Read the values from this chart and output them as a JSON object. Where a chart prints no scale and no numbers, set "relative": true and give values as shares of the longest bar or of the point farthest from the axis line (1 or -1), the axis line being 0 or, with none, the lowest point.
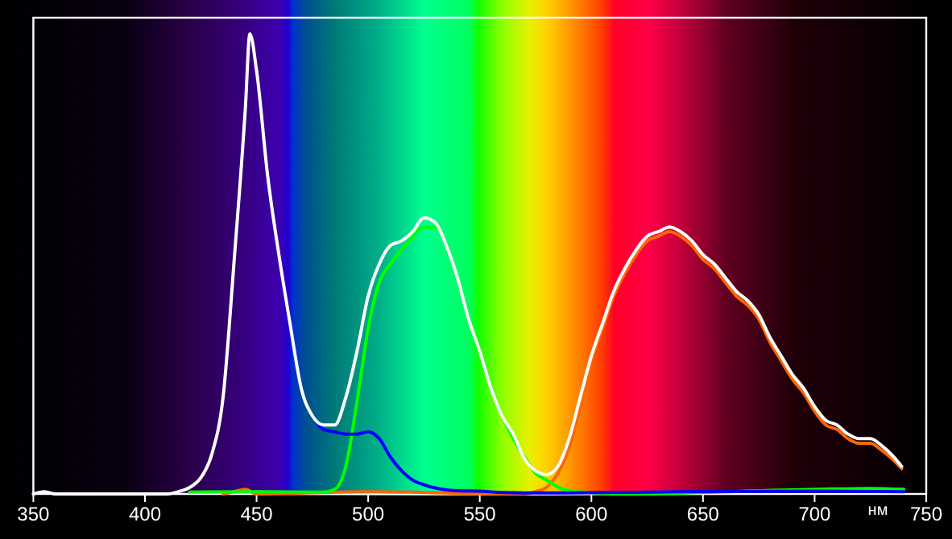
{
  "chart_data": {
    "type": "line",
    "xlabel": "нм",
    "relative": true,
    "xlim": [
      350,
      750
    ],
    "xticks": [
      350,
      400,
      450,
      500,
      550,
      600,
      650,
      700,
      750
    ],
    "grid": false,
    "marker": "none",
    "line_style": "solid",
    "series": [
      {
        "color": "#ff6600",
        "x": [
          435,
          440,
          445,
          450,
          500,
          560,
          570,
          575,
          580,
          585,
          590,
          595,
          600,
          605,
          610,
          615,
          620,
          625,
          630,
          635,
          640,
          645,
          650,
          655,
          660,
          665,
          670,
          675,
          680,
          685,
          690,
          695,
          700,
          705,
          710,
          715,
          720,
          725,
          730,
          735,
          739
        ],
        "values": [
          0,
          0.005,
          0.01,
          0,
          0.005,
          0,
          0,
          0.005,
          0.015,
          0.045,
          0.1,
          0.19,
          0.29,
          0.36,
          0.43,
          0.48,
          0.52,
          0.55,
          0.56,
          0.57,
          0.56,
          0.54,
          0.51,
          0.49,
          0.46,
          0.43,
          0.41,
          0.38,
          0.33,
          0.29,
          0.25,
          0.22,
          0.18,
          0.15,
          0.14,
          0.12,
          0.11,
          0.11,
          0.095,
          0.075,
          0.055
        ]
      },
      {
        "color": "#00ff00",
        "x": [
          420,
          450,
          480,
          485,
          490,
          495,
          500,
          505,
          510,
          515,
          520,
          525,
          530,
          535,
          540,
          545,
          550,
          555,
          560,
          565,
          570,
          575,
          580,
          585,
          590,
          600,
          610,
          700,
          725,
          740
        ],
        "values": [
          0.004,
          0.005,
          0.004,
          0.01,
          0.06,
          0.2,
          0.36,
          0.46,
          0.5,
          0.53,
          0.56,
          0.58,
          0.58,
          0.54,
          0.47,
          0.38,
          0.31,
          0.23,
          0.17,
          0.12,
          0.08,
          0.045,
          0.03,
          0.015,
          0.007,
          0.003,
          0,
          0.01,
          0.012,
          0.01
        ]
      },
      {
        "color": "#0000ff",
        "x": [
          475,
          480,
          485,
          490,
          495,
          500,
          505,
          510,
          515,
          520,
          525,
          530,
          540,
          550,
          560,
          580,
          640,
          700,
          740
        ],
        "values": [
          0.17,
          0.14,
          0.135,
          0.13,
          0.13,
          0.135,
          0.12,
          0.08,
          0.05,
          0.03,
          0.02,
          0.013,
          0.007,
          0.006,
          0.003,
          0.002,
          0.005,
          0.006,
          0.005
        ]
      },
      {
        "color": "#ffffff",
        "x": [
          350,
          355,
          360,
          410,
          415,
          420,
          425,
          430,
          435,
          440,
          445,
          447,
          450,
          455,
          460,
          465,
          470,
          475,
          480,
          485,
          490,
          495,
          500,
          505,
          510,
          515,
          520,
          525,
          530,
          535,
          540,
          545,
          550,
          555,
          560,
          565,
          570,
          575,
          580,
          585,
          590,
          595,
          600,
          605,
          610,
          615,
          620,
          625,
          630,
          635,
          640,
          645,
          650,
          655,
          660,
          665,
          670,
          675,
          680,
          685,
          690,
          695,
          700,
          705,
          710,
          715,
          720,
          725,
          730,
          735,
          739
        ],
        "values": [
          0,
          0.005,
          0,
          0,
          0.005,
          0.014,
          0.035,
          0.087,
          0.21,
          0.51,
          0.84,
          1,
          0.92,
          0.69,
          0.52,
          0.37,
          0.23,
          0.17,
          0.15,
          0.15,
          0.21,
          0.31,
          0.43,
          0.5,
          0.54,
          0.55,
          0.57,
          0.6,
          0.59,
          0.54,
          0.47,
          0.38,
          0.31,
          0.23,
          0.17,
          0.13,
          0.077,
          0.05,
          0.042,
          0.06,
          0.12,
          0.21,
          0.3,
          0.37,
          0.44,
          0.49,
          0.53,
          0.56,
          0.57,
          0.58,
          0.57,
          0.55,
          0.52,
          0.5,
          0.47,
          0.44,
          0.42,
          0.39,
          0.34,
          0.3,
          0.26,
          0.23,
          0.19,
          0.16,
          0.15,
          0.13,
          0.12,
          0.12,
          0.105,
          0.083,
          0.06
        ]
      }
    ]
  }
}
